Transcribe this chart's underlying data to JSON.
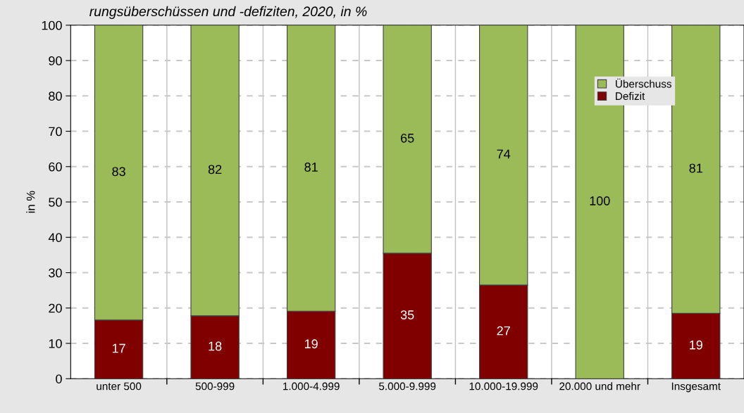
{
  "chart_data": {
    "type": "bar",
    "stacked": true,
    "title": "rungsüberschüssen und -defiziten, 2020, in %",
    "ylabel": "in %",
    "categories": [
      "unter 500",
      "500-999",
      "1.000-4.999",
      "5.000-9.999",
      "10.000-19.999",
      "20.000 und mehr",
      "Insgesamt"
    ],
    "series": [
      {
        "name": "Defizit",
        "color": "#800000",
        "values": [
          16.6,
          17.8,
          19.1,
          35.5,
          26.5,
          0,
          18.5
        ],
        "value_labels": [
          "17",
          "18",
          "19",
          "35",
          "27",
          null,
          "19"
        ]
      },
      {
        "name": "Überschuss",
        "color": "#9bbb59",
        "values": [
          83.4,
          82.2,
          80.9,
          64.5,
          73.5,
          100,
          81.5
        ],
        "value_labels": [
          "83",
          "82",
          "81",
          "65",
          "74",
          "100",
          "81"
        ]
      }
    ],
    "ylim": [
      0,
      100
    ],
    "yticks": [
      0,
      10,
      20,
      30,
      40,
      50,
      60,
      70,
      80,
      90,
      100
    ],
    "grid": true,
    "legend": "top right"
  }
}
